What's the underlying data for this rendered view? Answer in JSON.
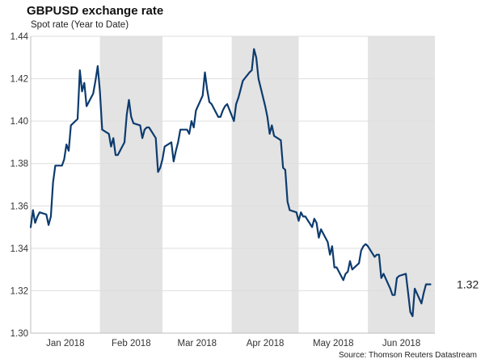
{
  "title": "GBPUSD exchange rate",
  "subtitle": "Spot rate (Year to Date)",
  "source": "Source: Thomson Reuters Datastream",
  "colors": {
    "line": "#0d3b6e",
    "shade": "#e3e3e3",
    "grid": "#dedede",
    "axis": "#bdbdbd"
  },
  "chart_data": {
    "type": "line",
    "title": "GBPUSD exchange rate",
    "subtitle": "Spot rate (Year to Date)",
    "xlabel": "",
    "ylabel": "",
    "ylim": [
      1.3,
      1.44
    ],
    "yticks": [
      1.3,
      1.32,
      1.34,
      1.36,
      1.38,
      1.4,
      1.42,
      1.44
    ],
    "ytick_labels": [
      "1.30",
      "1.32",
      "1.34",
      "1.36",
      "1.38",
      "1.40",
      "1.42",
      "1.44"
    ],
    "x_range": [
      "2018-01-01",
      "2018-07-01"
    ],
    "months": [
      {
        "label": "Jan 2018",
        "start": "2018-01-01",
        "end": "2018-01-31",
        "shaded": false
      },
      {
        "label": "Feb 2018",
        "start": "2018-02-01",
        "end": "2018-02-28",
        "shaded": true
      },
      {
        "label": "Mar 2018",
        "start": "2018-03-01",
        "end": "2018-03-31",
        "shaded": false
      },
      {
        "label": "Apr 2018",
        "start": "2018-04-01",
        "end": "2018-04-30",
        "shaded": true
      },
      {
        "label": "May 2018",
        "start": "2018-05-01",
        "end": "2018-05-31",
        "shaded": false
      },
      {
        "label": "Jun 2018",
        "start": "2018-06-01",
        "end": "2018-06-30",
        "shaded": true
      }
    ],
    "grid": true,
    "last_value_label": "1.32",
    "series": [
      {
        "name": "GBPUSD",
        "x": [
          "2018-01-01",
          "2018-01-02",
          "2018-01-03",
          "2018-01-04",
          "2018-01-05",
          "2018-01-08",
          "2018-01-09",
          "2018-01-10",
          "2018-01-11",
          "2018-01-12",
          "2018-01-15",
          "2018-01-16",
          "2018-01-17",
          "2018-01-18",
          "2018-01-19",
          "2018-01-22",
          "2018-01-23",
          "2018-01-24",
          "2018-01-25",
          "2018-01-26",
          "2018-01-29",
          "2018-01-30",
          "2018-01-31",
          "2018-02-01",
          "2018-02-02",
          "2018-02-05",
          "2018-02-06",
          "2018-02-07",
          "2018-02-08",
          "2018-02-09",
          "2018-02-12",
          "2018-02-13",
          "2018-02-14",
          "2018-02-15",
          "2018-02-16",
          "2018-02-19",
          "2018-02-20",
          "2018-02-21",
          "2018-02-22",
          "2018-02-23",
          "2018-02-26",
          "2018-02-27",
          "2018-02-28",
          "2018-03-01",
          "2018-03-02",
          "2018-03-05",
          "2018-03-06",
          "2018-03-07",
          "2018-03-08",
          "2018-03-09",
          "2018-03-12",
          "2018-03-13",
          "2018-03-14",
          "2018-03-15",
          "2018-03-16",
          "2018-03-19",
          "2018-03-20",
          "2018-03-21",
          "2018-03-22",
          "2018-03-23",
          "2018-03-26",
          "2018-03-27",
          "2018-03-28",
          "2018-03-29",
          "2018-03-30",
          "2018-04-02",
          "2018-04-03",
          "2018-04-04",
          "2018-04-05",
          "2018-04-06",
          "2018-04-09",
          "2018-04-10",
          "2018-04-11",
          "2018-04-12",
          "2018-04-13",
          "2018-04-16",
          "2018-04-17",
          "2018-04-18",
          "2018-04-19",
          "2018-04-20",
          "2018-04-23",
          "2018-04-24",
          "2018-04-25",
          "2018-04-26",
          "2018-04-27",
          "2018-04-30",
          "2018-05-01",
          "2018-05-02",
          "2018-05-03",
          "2018-05-04",
          "2018-05-07",
          "2018-05-08",
          "2018-05-09",
          "2018-05-10",
          "2018-05-11",
          "2018-05-14",
          "2018-05-15",
          "2018-05-16",
          "2018-05-17",
          "2018-05-18",
          "2018-05-21",
          "2018-05-22",
          "2018-05-23",
          "2018-05-24",
          "2018-05-25",
          "2018-05-28",
          "2018-05-29",
          "2018-05-30",
          "2018-05-31",
          "2018-06-01",
          "2018-06-04",
          "2018-06-05",
          "2018-06-06",
          "2018-06-07",
          "2018-06-08",
          "2018-06-11",
          "2018-06-12",
          "2018-06-13",
          "2018-06-14",
          "2018-06-15",
          "2018-06-18",
          "2018-06-19",
          "2018-06-20",
          "2018-06-21",
          "2018-06-22",
          "2018-06-25",
          "2018-06-26",
          "2018-06-27",
          "2018-06-28",
          "2018-06-29"
        ],
        "values": [
          1.35,
          1.358,
          1.352,
          1.355,
          1.357,
          1.356,
          1.351,
          1.355,
          1.371,
          1.379,
          1.379,
          1.382,
          1.389,
          1.386,
          1.398,
          1.401,
          1.424,
          1.414,
          1.418,
          1.407,
          1.413,
          1.419,
          1.426,
          1.414,
          1.396,
          1.394,
          1.388,
          1.392,
          1.384,
          1.384,
          1.39,
          1.403,
          1.41,
          1.402,
          1.399,
          1.398,
          1.392,
          1.396,
          1.397,
          1.397,
          1.392,
          1.376,
          1.378,
          1.382,
          1.388,
          1.39,
          1.381,
          1.386,
          1.39,
          1.396,
          1.396,
          1.394,
          1.4,
          1.397,
          1.405,
          1.412,
          1.423,
          1.415,
          1.409,
          1.408,
          1.402,
          1.402,
          1.405,
          1.407,
          1.408,
          1.4,
          1.408,
          1.411,
          1.415,
          1.419,
          1.423,
          1.424,
          1.434,
          1.43,
          1.42,
          1.407,
          1.402,
          1.394,
          1.398,
          1.393,
          1.391,
          1.378,
          1.377,
          1.362,
          1.358,
          1.357,
          1.353,
          1.357,
          1.355,
          1.355,
          1.35,
          1.354,
          1.352,
          1.345,
          1.349,
          1.343,
          1.337,
          1.341,
          1.331,
          1.331,
          1.325,
          1.328,
          1.329,
          1.334,
          1.33,
          1.333,
          1.339,
          1.341,
          1.342,
          1.341,
          1.336,
          1.337,
          1.337,
          1.326,
          1.328,
          1.321,
          1.318,
          1.318,
          1.326,
          1.327,
          1.328,
          1.319,
          1.31,
          1.308,
          1.321,
          1.314,
          1.319,
          1.323,
          1.323,
          1.323
        ]
      }
    ]
  }
}
